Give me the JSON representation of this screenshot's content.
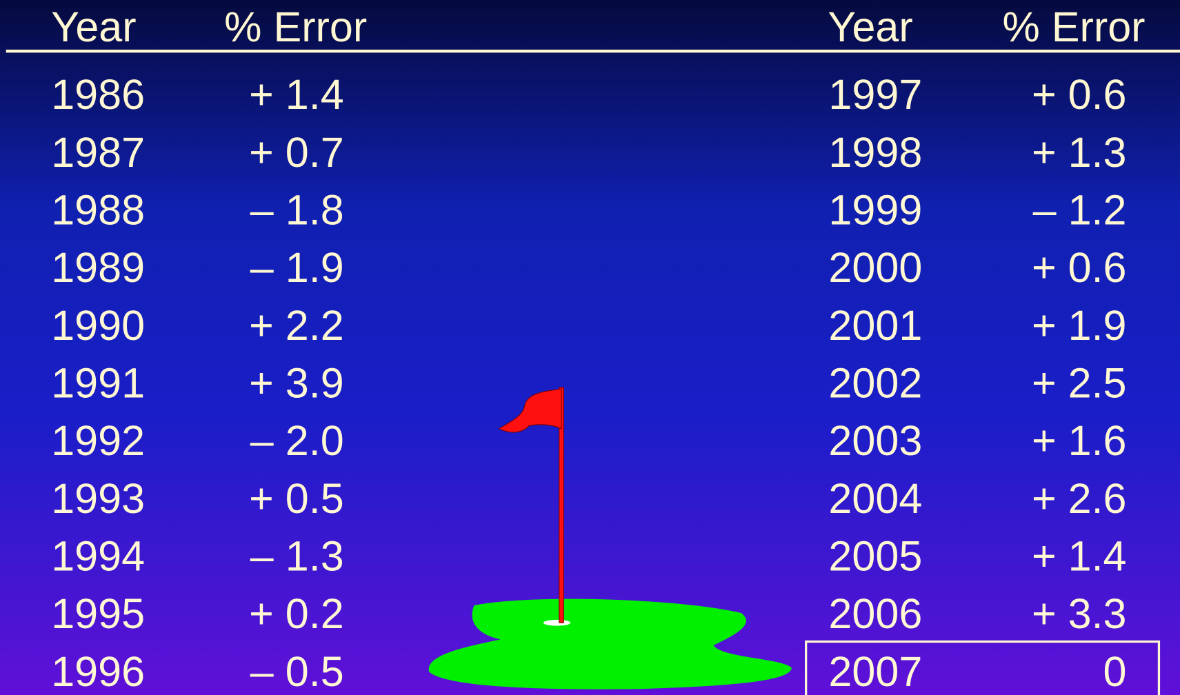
{
  "left_table": {
    "header": [
      "Year",
      "% Error"
    ],
    "rows": [
      [
        "1986",
        "+ 1.4"
      ],
      [
        "1987",
        "+ 0.7"
      ],
      [
        "1988",
        "– 1.8"
      ],
      [
        "1989",
        "– 1.9"
      ],
      [
        "1990",
        "+ 2.2"
      ],
      [
        "1991",
        "+ 3.9"
      ],
      [
        "1992",
        "– 2.0"
      ],
      [
        "1993",
        "+ 0.5"
      ],
      [
        "1994",
        "– 1.3"
      ],
      [
        "1995",
        "+ 0.2"
      ],
      [
        "1996",
        "– 0.5"
      ]
    ]
  },
  "right_table": {
    "header": [
      "Year",
      "% Error"
    ],
    "rows": [
      [
        "1997",
        "+ 0.6"
      ],
      [
        "1998",
        "+ 1.3"
      ],
      [
        "1999",
        "– 1.2"
      ],
      [
        "2000",
        "+ 0.6"
      ],
      [
        "2001",
        "+ 1.9"
      ],
      [
        "2002",
        "+ 2.5"
      ],
      [
        "2003",
        "+ 1.6"
      ],
      [
        "2004",
        "+ 2.6"
      ],
      [
        "2005",
        "+ 1.4"
      ],
      [
        "2006",
        "+ 3.3"
      ],
      [
        "2007",
        "0"
      ]
    ]
  }
}
